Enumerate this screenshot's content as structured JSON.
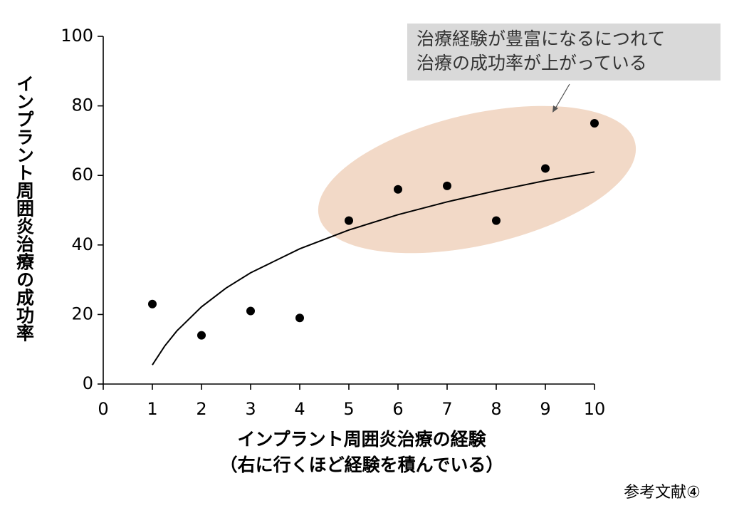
{
  "chart_data": {
    "type": "scatter",
    "ylabel": "インプラント周囲炎治療の成功率",
    "xlabel": [
      "インプラント周囲炎治療の経験",
      "（右に行くほど経験を積んでいる）"
    ],
    "annotation": [
      "治療経験が豊富になるにつれて",
      "治療の成功率が上がっている"
    ],
    "source": "参考文献④",
    "xlim": [
      0,
      10
    ],
    "xticks": [
      0,
      1,
      2,
      3,
      4,
      5,
      6,
      7,
      8,
      9,
      10
    ],
    "ylim": [
      0,
      100
    ],
    "yticks": [
      0,
      20,
      40,
      60,
      80,
      100
    ],
    "series": [
      {
        "type": "scatter",
        "color": "#000000",
        "x": [
          1,
          2,
          3,
          4,
          5,
          6,
          7,
          8,
          9,
          10
        ],
        "values": [
          23,
          14,
          21,
          19,
          47,
          56,
          57,
          47,
          62,
          75
        ]
      },
      {
        "type": "line",
        "color": "#000000",
        "x": [
          1,
          1.25,
          1.5,
          2,
          2.5,
          3,
          4,
          5,
          6,
          7,
          8,
          9,
          10
        ],
        "values": [
          5.5,
          10.9,
          15.3,
          22.2,
          27.6,
          32,
          38.9,
          44.3,
          48.7,
          52.4,
          55.6,
          58.5,
          61
        ]
      }
    ]
  }
}
